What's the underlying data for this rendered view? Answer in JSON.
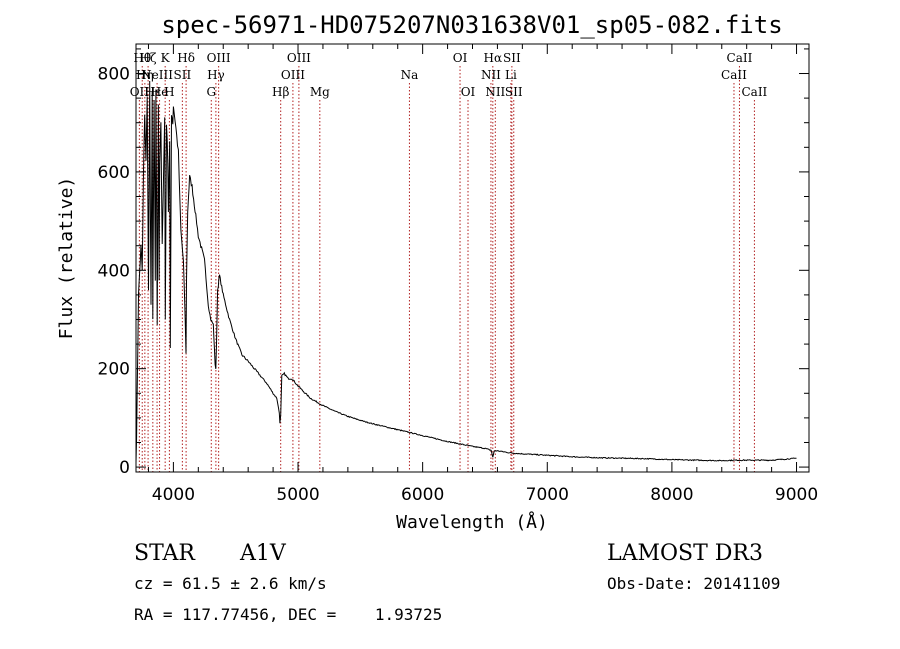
{
  "chart_data": {
    "type": "line",
    "title": "spec-56971-HD075207N031638V01_sp05-082.fits",
    "xlabel": "Wavelength (Å)",
    "ylabel": "Flux (relative)",
    "xlim": [
      3700,
      9100
    ],
    "ylim": [
      -10,
      860
    ],
    "xticks": [
      4000,
      5000,
      6000,
      7000,
      8000,
      9000
    ],
    "yticks": [
      0,
      200,
      400,
      600,
      800
    ],
    "spectrum": {
      "name": "flux",
      "x": [
        3700,
        3705,
        3720,
        3740,
        3750,
        3760,
        3770,
        3780,
        3790,
        3800,
        3810,
        3820,
        3830,
        3835,
        3845,
        3855,
        3860,
        3870,
        3880,
        3885,
        3890,
        3900,
        3910,
        3930,
        3935,
        3945,
        3955,
        3960,
        3970,
        3975,
        3985,
        3995,
        4000,
        4020,
        4040,
        4060,
        4080,
        4095,
        4101,
        4105,
        4115,
        4130,
        4150,
        4180,
        4200,
        4220,
        4250,
        4280,
        4300,
        4320,
        4335,
        4340,
        4345,
        4355,
        4370,
        4400,
        4450,
        4500,
        4550,
        4600,
        4650,
        4700,
        4750,
        4800,
        4830,
        4850,
        4855,
        4861,
        4865,
        4870,
        4890,
        4920,
        4950,
        5000,
        5050,
        5100,
        5200,
        5300,
        5400,
        5500,
        5600,
        5700,
        5800,
        5900,
        6000,
        6100,
        6200,
        6300,
        6400,
        6500,
        6550,
        6563,
        6575,
        6600,
        6700,
        6800,
        7000,
        7200,
        7400,
        7600,
        7800,
        8000,
        8200,
        8400,
        8500,
        8600,
        8700,
        8800,
        8900,
        9000
      ],
      "y": [
        10,
        60,
        350,
        450,
        400,
        600,
        720,
        620,
        760,
        360,
        780,
        330,
        760,
        300,
        740,
        380,
        770,
        290,
        740,
        380,
        620,
        700,
        450,
        710,
        300,
        700,
        620,
        520,
        660,
        240,
        720,
        700,
        735,
        690,
        640,
        480,
        420,
        300,
        230,
        380,
        520,
        590,
        570,
        510,
        470,
        450,
        420,
        330,
        300,
        290,
        210,
        200,
        240,
        360,
        390,
        350,
        300,
        260,
        228,
        215,
        200,
        185,
        170,
        150,
        140,
        110,
        90,
        105,
        140,
        185,
        190,
        180,
        180,
        165,
        152,
        140,
        125,
        113,
        103,
        95,
        88,
        82,
        76,
        70,
        64,
        58,
        52,
        47,
        42,
        38,
        34,
        20,
        33,
        33,
        29,
        27,
        24,
        21,
        19,
        18,
        17,
        15,
        14,
        13,
        14,
        14,
        14,
        14,
        16,
        18
      ]
    },
    "line_markers": [
      {
        "wavelength": 3727,
        "label": "OII",
        "row": 3
      },
      {
        "wavelength": 3750,
        "label": "Hθ",
        "row": 1
      },
      {
        "wavelength": 3771,
        "label": "Hη",
        "row": 2
      },
      {
        "wavelength": 3797,
        "label": "Hζ",
        "row": 1
      },
      {
        "wavelength": 3835,
        "label": "Hε",
        "row": 3
      },
      {
        "wavelength": 3869,
        "label": "NeIII",
        "row": 2
      },
      {
        "wavelength": 3889,
        "label": "He",
        "row": 3
      },
      {
        "wavelength": 3934,
        "label": "K",
        "row": 1
      },
      {
        "wavelength": 3968,
        "label": "H",
        "row": 3
      },
      {
        "wavelength": 4072,
        "label": "SII",
        "row": 2
      },
      {
        "wavelength": 4102,
        "label": "Hδ",
        "row": 1
      },
      {
        "wavelength": 4304,
        "label": "G",
        "row": 3
      },
      {
        "wavelength": 4341,
        "label": "Hγ",
        "row": 2
      },
      {
        "wavelength": 4363,
        "label": "OIII",
        "row": 1
      },
      {
        "wavelength": 4861,
        "label": "Hβ",
        "row": 3
      },
      {
        "wavelength": 4959,
        "label": "OIII",
        "row": 2
      },
      {
        "wavelength": 5007,
        "label": "OIII",
        "row": 1
      },
      {
        "wavelength": 5175,
        "label": "Mg",
        "row": 3
      },
      {
        "wavelength": 5894,
        "label": "Na",
        "row": 2
      },
      {
        "wavelength": 6300,
        "label": "OI",
        "row": 1
      },
      {
        "wavelength": 6364,
        "label": "OI",
        "row": 3
      },
      {
        "wavelength": 6548,
        "label": "NII",
        "row": 2
      },
      {
        "wavelength": 6563,
        "label": "Hα",
        "row": 1
      },
      {
        "wavelength": 6583,
        "label": "NII",
        "row": 3
      },
      {
        "wavelength": 6708,
        "label": "Li",
        "row": 2
      },
      {
        "wavelength": 6716,
        "label": "SII",
        "row": 1
      },
      {
        "wavelength": 6731,
        "label": "SII",
        "row": 3
      },
      {
        "wavelength": 8498,
        "label": "CaII",
        "row": 2
      },
      {
        "wavelength": 8542,
        "label": "CaII",
        "row": 1
      },
      {
        "wavelength": 8662,
        "label": "CaII",
        "row": 3
      }
    ],
    "colors": {
      "spectrum": "#000000",
      "marker": "#b22222",
      "frame": "#000000"
    }
  },
  "info": {
    "class_label": "STAR",
    "subclass": "A1V",
    "survey": "LAMOST DR3",
    "cz": "cz = 61.5 ± 2.6 km/s",
    "obs_date": "Obs-Date: 20141109",
    "radec": "RA = 117.77456, DEC =    1.93725"
  }
}
